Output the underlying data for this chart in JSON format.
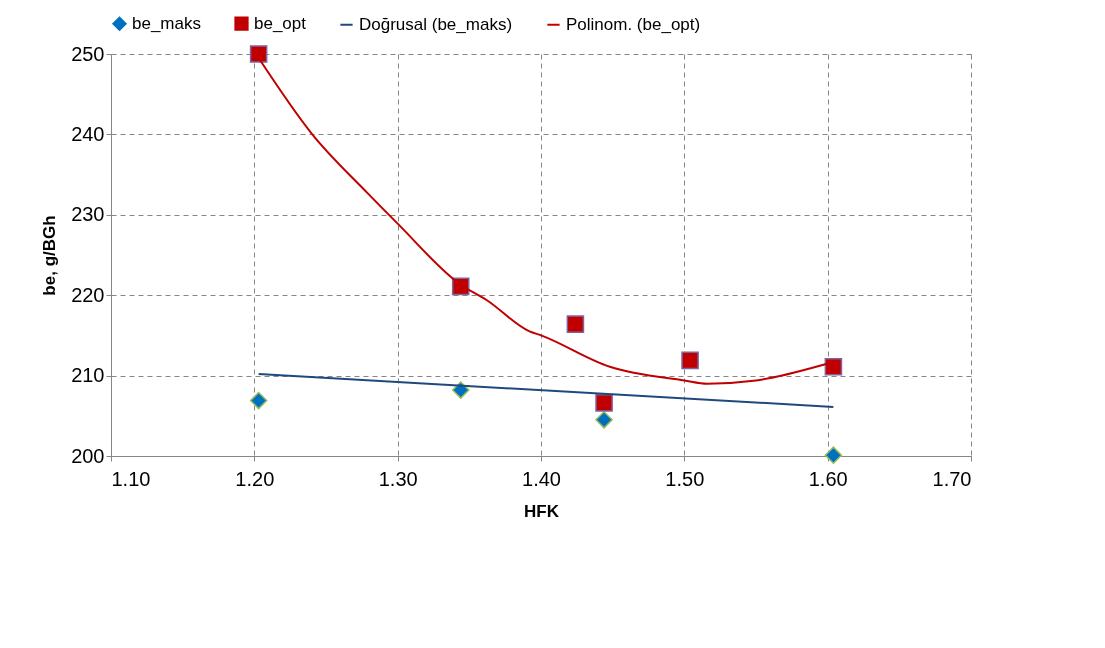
{
  "chart_data": {
    "type": "scatter",
    "xlabel": "HFK",
    "ylabel": "be, g/BGh",
    "xlim": [
      1.1,
      1.7
    ],
    "xticks": [
      {
        "value": 1.1,
        "label": "1.10"
      },
      {
        "value": 1.2,
        "label": "1.20"
      },
      {
        "value": 1.3,
        "label": "1.30"
      },
      {
        "value": 1.4,
        "label": "1.40"
      },
      {
        "value": 1.5,
        "label": "1.50"
      },
      {
        "value": 1.6,
        "label": "1.60"
      },
      {
        "value": 1.7,
        "label": "1.70"
      }
    ],
    "ylim": [
      200,
      250
    ],
    "yticks": [
      200,
      210,
      220,
      230,
      240,
      250
    ],
    "grid": true,
    "legend": "top",
    "series": [
      {
        "name": "be_maks",
        "marker": "diamond",
        "color": "#0070c0",
        "x": [
          1.203,
          1.344,
          1.444,
          1.604
        ],
        "values": [
          206.9,
          208.2,
          204.5,
          200.1
        ]
      },
      {
        "name": "be_opt",
        "marker": "square",
        "color": "#c00000",
        "x": [
          1.203,
          1.344,
          1.424,
          1.444,
          1.504,
          1.604
        ],
        "values": [
          250.0,
          221.1,
          216.4,
          206.6,
          211.9,
          211.1
        ]
      },
      {
        "name": "Doğrusal (be_maks)",
        "type": "line",
        "color": "#1f497d",
        "x": [
          1.203,
          1.604
        ],
        "values": [
          210.2,
          206.1
        ]
      },
      {
        "name": "Polinom. (be_opt)",
        "type": "line",
        "color": "#c00000",
        "x": [
          1.203,
          1.24,
          1.279,
          1.3,
          1.344,
          1.362,
          1.392,
          1.4,
          1.448,
          1.5,
          1.516,
          1.55,
          1.6,
          1.604
        ],
        "values": [
          249.5,
          240.1,
          232.7,
          228.9,
          221.3,
          219.4,
          215.5,
          215.0,
          211.1,
          209.4,
          209.0,
          209.4,
          211.5,
          211.7
        ]
      }
    ]
  }
}
